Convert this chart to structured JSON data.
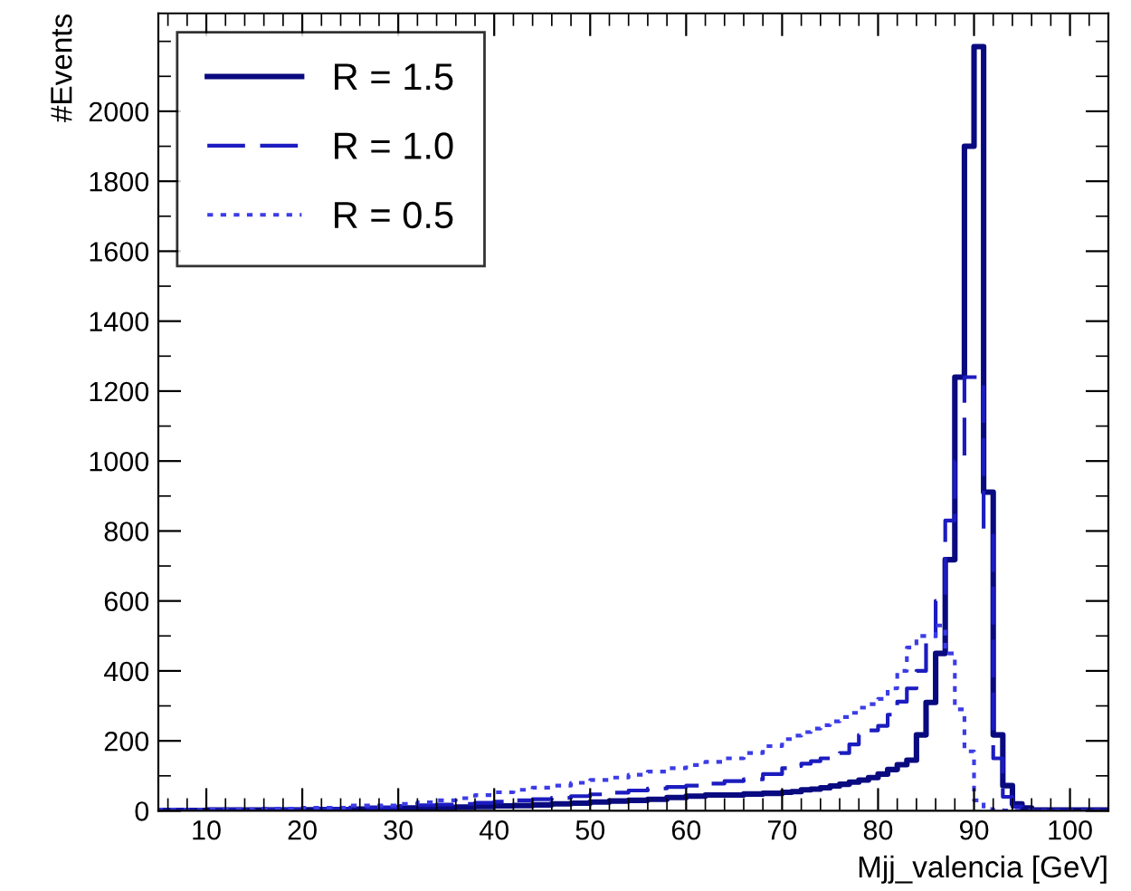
{
  "chart_data": {
    "type": "histogram",
    "xlabel": "Mjj_valencia [GeV]",
    "ylabel": "#Events",
    "bins": [
      5,
      10,
      15,
      20,
      25,
      30,
      32,
      34,
      36,
      38,
      40,
      42,
      44,
      46,
      48,
      50,
      52,
      54,
      56,
      58,
      60,
      62,
      64,
      66,
      68,
      70,
      71,
      72,
      73,
      74,
      75,
      76,
      77,
      78,
      79,
      80,
      81,
      82,
      83,
      84,
      85,
      86,
      87,
      88,
      89,
      90,
      91,
      92,
      93,
      94,
      95,
      96,
      104
    ],
    "series": [
      {
        "name": "R = 1.5",
        "color": "#0a0a80",
        "line_style": "solid",
        "values": [
          1,
          2,
          2,
          3,
          5,
          8,
          9,
          10,
          11,
          12,
          14,
          15,
          17,
          20,
          22,
          25,
          28,
          30,
          33,
          38,
          42,
          45,
          45,
          48,
          50,
          53,
          55,
          60,
          62,
          66,
          71,
          76,
          82,
          88,
          95,
          105,
          118,
          132,
          145,
          217,
          310,
          450,
          718,
          1240,
          1900,
          2185,
          911,
          217,
          72,
          20,
          8,
          2
        ]
      },
      {
        "name": "R = 1.0",
        "color": "#1c1cc0",
        "line_style": "dashed",
        "values": [
          2,
          3,
          4,
          6,
          10,
          14,
          16,
          18,
          20,
          23,
          26,
          30,
          33,
          37,
          42,
          47,
          52,
          58,
          64,
          68,
          72,
          78,
          85,
          90,
          105,
          122,
          128,
          135,
          142,
          150,
          157,
          165,
          190,
          217,
          230,
          243,
          275,
          312,
          350,
          400,
          480,
          600,
          830,
          1000,
          1240,
          1240,
          800,
          150,
          40,
          12,
          5,
          1
        ]
      },
      {
        "name": "R = 0.5",
        "color": "#3c3ce6",
        "line_style": "dotted",
        "values": [
          3,
          4,
          6,
          9,
          15,
          20,
          24,
          30,
          36,
          45,
          53,
          60,
          66,
          72,
          80,
          88,
          95,
          103,
          112,
          122,
          131,
          140,
          150,
          165,
          185,
          205,
          215,
          225,
          235,
          245,
          256,
          268,
          280,
          295,
          305,
          320,
          350,
          400,
          467,
          500,
          500,
          530,
          450,
          290,
          170,
          30,
          5,
          2,
          1,
          0,
          0,
          0
        ]
      }
    ],
    "xlim": [
      5,
      104
    ],
    "ylim": [
      0,
      2280
    ],
    "xticks": [
      10,
      20,
      30,
      40,
      50,
      60,
      70,
      80,
      90,
      100
    ],
    "yticks": [
      0,
      200,
      400,
      600,
      800,
      1000,
      1200,
      1400,
      1600,
      1800,
      2000
    ],
    "grid": false,
    "legend": "top left"
  }
}
